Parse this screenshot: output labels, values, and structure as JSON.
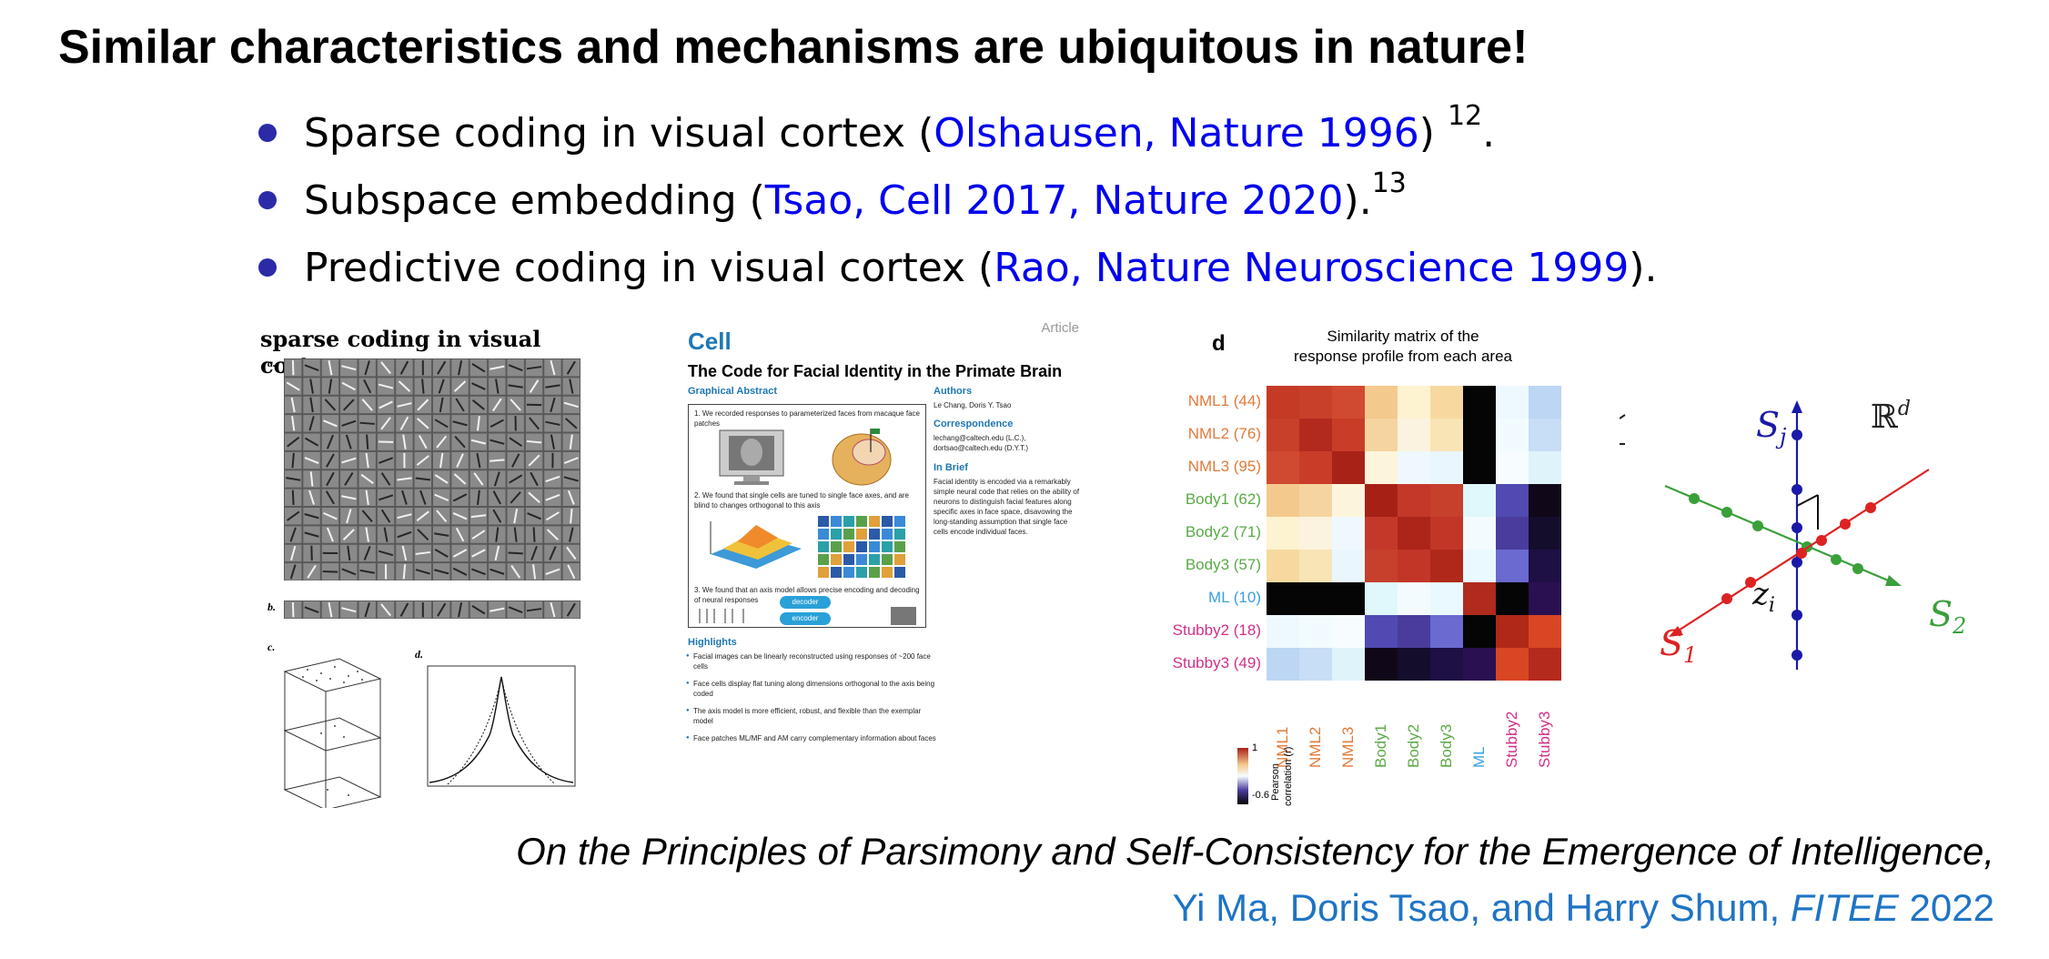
{
  "title": "Similar characteristics and mechanisms are ubiquitous in nature!",
  "bullets": [
    {
      "pre": "Sparse coding in visual cortex (",
      "link": "Olshausen, Nature 1996",
      "post": ") ",
      "sup": "12",
      "tail": "."
    },
    {
      "pre": "Subspace embedding (",
      "link": "Tsao, Cell 2017, Nature 2020",
      "post": ").",
      "sup": "13",
      "tail": ""
    },
    {
      "pre": "Predictive coding in visual cortex (",
      "link": "Rao, Nature Neuroscience 1999",
      "post": ").",
      "sup": "",
      "tail": ""
    }
  ],
  "colors": {
    "link": "#0000ee",
    "bullet": "#2b2ba8",
    "cite": "#1f74c4",
    "cell_blue": "#1f77b4"
  },
  "panel_sparse": {
    "title": "sparse coding in visual cortex",
    "labels": [
      "a.",
      "b.",
      "c.",
      "d."
    ]
  },
  "panel_cell": {
    "logo": "Cell",
    "type": "Article",
    "paper_title": "The Code for Facial Identity in the Primate Brain",
    "graphical_abstract": "Graphical Abstract",
    "ga_step1": "1. We recorded responses to parameterized faces from macaque face patches",
    "ga_step2": "2. We found that single cells are tuned to single face axes, and are blind to changes orthogonal to this axis",
    "ga_step3": "3. We found that an axis model allows precise encoding and decoding of neural responses",
    "decoder": "decoder",
    "encoder": "encoder",
    "authors_h": "Authors",
    "authors": "Le Chang, Doris Y. Tsao",
    "correspondence_h": "Correspondence",
    "correspondence": "lechang@caltech.edu (L.C.), dortsao@caltech.edu (D.Y.T.)",
    "inbrief_h": "In Brief",
    "inbrief": "Facial identity is encoded via a remarkably simple neural code that relies on the ability of neurons to distinguish facial features along specific axes in face space, disavowing the long-standing assumption that single face cells encode individual faces.",
    "highlights_h": "Highlights",
    "highlights": [
      "Facial images can be linearly reconstructed using responses of ~200 face cells",
      "Face cells display flat tuning along dimensions orthogonal to the axis being coded",
      "The axis model is more efficient, robust, and flexible than the exemplar model",
      "Face patches ML/MF and AM carry complementary information about faces"
    ]
  },
  "panel_matrix": {
    "label": "d",
    "title_line1": "Similarity matrix of the",
    "title_line2": "response profile from each area",
    "rows": [
      {
        "name": "NML1 (44)",
        "short": "NML1",
        "color": "#e07a3a"
      },
      {
        "name": "NML2 (76)",
        "short": "NML2",
        "color": "#e07a3a"
      },
      {
        "name": "NML3 (95)",
        "short": "NML3",
        "color": "#e07a3a"
      },
      {
        "name": "Body1 (62)",
        "short": "Body1",
        "color": "#5aaa46"
      },
      {
        "name": "Body2 (71)",
        "short": "Body2",
        "color": "#5aaa46"
      },
      {
        "name": "Body3 (57)",
        "short": "Body3",
        "color": "#5aaa46"
      },
      {
        "name": "ML (10)",
        "short": "ML",
        "color": "#3aa0e0"
      },
      {
        "name": "Stubby2 (18)",
        "short": "Stubby2",
        "color": "#d0308a"
      },
      {
        "name": "Stubby3 (49)",
        "short": "Stubby3",
        "color": "#d0308a"
      }
    ],
    "cells": [
      [
        "#c43a25",
        "#c8402a",
        "#cf4a30",
        "#f4c98e",
        "#fdf3d0",
        "#f7d99f",
        "#050505",
        "#eef8ff",
        "#bcd6f4"
      ],
      [
        "#c8402a",
        "#b22a1e",
        "#c93d28",
        "#f6d4a0",
        "#fbf3df",
        "#f8e4b4",
        "#050505",
        "#f2fbff",
        "#c8ddf6"
      ],
      [
        "#cf4a30",
        "#c93d28",
        "#a82218",
        "#fdf4dc",
        "#eef8fe",
        "#eaf6fe",
        "#050505",
        "#f6fcff",
        "#dff3fb"
      ],
      [
        "#f4c98e",
        "#f6d4a0",
        "#fdf4dc",
        "#a62016",
        "#c4382a",
        "#c6402c",
        "#e0f7fb",
        "#504ab2",
        "#100818"
      ],
      [
        "#fdf3d0",
        "#fbf3df",
        "#eef8fe",
        "#c4382a",
        "#ad2519",
        "#c23628",
        "#f3fbff",
        "#4a3c9c",
        "#150d2c"
      ],
      [
        "#f7d99f",
        "#f8e4b4",
        "#eaf6fe",
        "#c6402c",
        "#c23628",
        "#b02819",
        "#eaf9ff",
        "#6a6ad0",
        "#1e0f44"
      ],
      [
        "#050505",
        "#050505",
        "#050505",
        "#e0f7fb",
        "#f3fbff",
        "#eaf9ff",
        "#b02a1e",
        "#050505",
        "#2a1050"
      ],
      [
        "#eef8ff",
        "#f2fbff",
        "#f6fcff",
        "#504ab2",
        "#4a3c9c",
        "#6a6ad0",
        "#050505",
        "#b02818",
        "#d84624"
      ],
      [
        "#bcd6f4",
        "#c8ddf6",
        "#dff3fb",
        "#100818",
        "#150d2c",
        "#1e0f44",
        "#2a1050",
        "#d84624",
        "#b42a1c"
      ]
    ],
    "colorbar_max": "1",
    "colorbar_min": "-0.6",
    "colorbar_label1": "Pearson",
    "colorbar_label2": "correlation (r)"
  },
  "panel_subspace": {
    "sj": "S",
    "sj_sub": "j",
    "s1": "S",
    "s1_sub": "1",
    "s2": "S",
    "s2_sub": "2",
    "rd": "ℝ",
    "rd_sup": "d",
    "zi": "z",
    "zi_sub": "i"
  },
  "citation": {
    "line1": "On the Principles of Parsimony and Self-Consistency for the Emergence of Intelligence,",
    "authors": "Yi Ma, Doris Tsao, and Harry Shum, ",
    "venue": "FITEE",
    "year": " 2022"
  }
}
